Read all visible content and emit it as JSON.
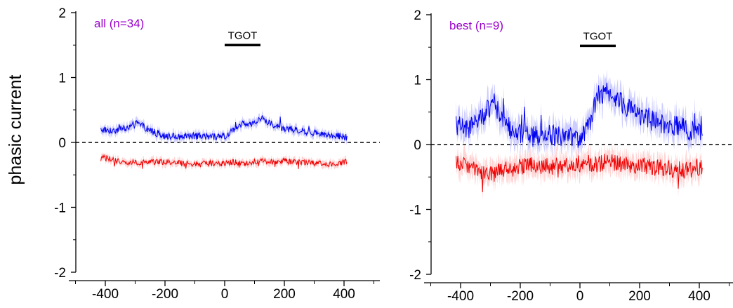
{
  "ylabel": "phasic current",
  "colors": {
    "positive_line": "#0000ee",
    "positive_band": "#c4c4ff",
    "negative_line": "#ee0000",
    "negative_band": "#ffcccc",
    "title": "#9900cc",
    "axis": "#000000"
  },
  "chart_data": [
    {
      "type": "line",
      "title": "all (n=34)",
      "xlabel": "",
      "ylabel": "phasic current",
      "xlim": [
        -520,
        520
      ],
      "ylim": [
        -2,
        2
      ],
      "xticks": [
        -400,
        -200,
        0,
        200,
        400
      ],
      "yticks": [
        -2,
        -1,
        0,
        1,
        2
      ],
      "reference_line": {
        "y": 0,
        "style": "dashed"
      },
      "stimulus": {
        "label": "TGOT",
        "x_start": 0,
        "x_end": 120,
        "y": 1.5
      },
      "x": [
        -415,
        -370,
        -330,
        -290,
        -250,
        -200,
        -150,
        -100,
        -50,
        0,
        30,
        60,
        90,
        120,
        150,
        200,
        250,
        300,
        350,
        410
      ],
      "series": [
        {
          "values": [
            0.2,
            0.18,
            0.22,
            0.3,
            0.18,
            0.1,
            0.09,
            0.1,
            0.08,
            0.1,
            0.18,
            0.3,
            0.28,
            0.38,
            0.3,
            0.22,
            0.18,
            0.15,
            0.12,
            0.08
          ],
          "band": 0.06
        },
        {
          "values": [
            -0.22,
            -0.28,
            -0.3,
            -0.32,
            -0.3,
            -0.3,
            -0.32,
            -0.34,
            -0.32,
            -0.33,
            -0.3,
            -0.33,
            -0.3,
            -0.28,
            -0.3,
            -0.29,
            -0.3,
            -0.32,
            -0.33,
            -0.3
          ],
          "band": 0.05
        }
      ]
    },
    {
      "type": "line",
      "title": "best (n=9)",
      "xlabel": "",
      "ylabel": "",
      "xlim": [
        -520,
        520
      ],
      "ylim": [
        -2,
        2
      ],
      "xticks": [
        -400,
        -200,
        0,
        200,
        400
      ],
      "yticks": [
        -2,
        -1,
        0,
        1,
        2
      ],
      "reference_line": {
        "y": 0,
        "style": "dashed"
      },
      "stimulus": {
        "label": "TGOT",
        "x_start": 0,
        "x_end": 120,
        "y": 1.52
      },
      "x": [
        -415,
        -370,
        -330,
        -290,
        -250,
        -200,
        -150,
        -100,
        -50,
        0,
        30,
        60,
        90,
        120,
        150,
        200,
        250,
        300,
        350,
        410
      ],
      "series": [
        {
          "values": [
            0.3,
            0.25,
            0.4,
            0.65,
            0.3,
            0.15,
            0.12,
            0.15,
            0.12,
            0.1,
            0.3,
            0.75,
            0.8,
            0.7,
            0.6,
            0.45,
            0.35,
            0.3,
            0.25,
            0.18
          ],
          "band": 0.18
        },
        {
          "values": [
            -0.25,
            -0.35,
            -0.4,
            -0.45,
            -0.38,
            -0.35,
            -0.32,
            -0.35,
            -0.3,
            -0.3,
            -0.28,
            -0.3,
            -0.25,
            -0.28,
            -0.3,
            -0.32,
            -0.35,
            -0.38,
            -0.4,
            -0.33
          ],
          "band": 0.15
        }
      ]
    }
  ]
}
